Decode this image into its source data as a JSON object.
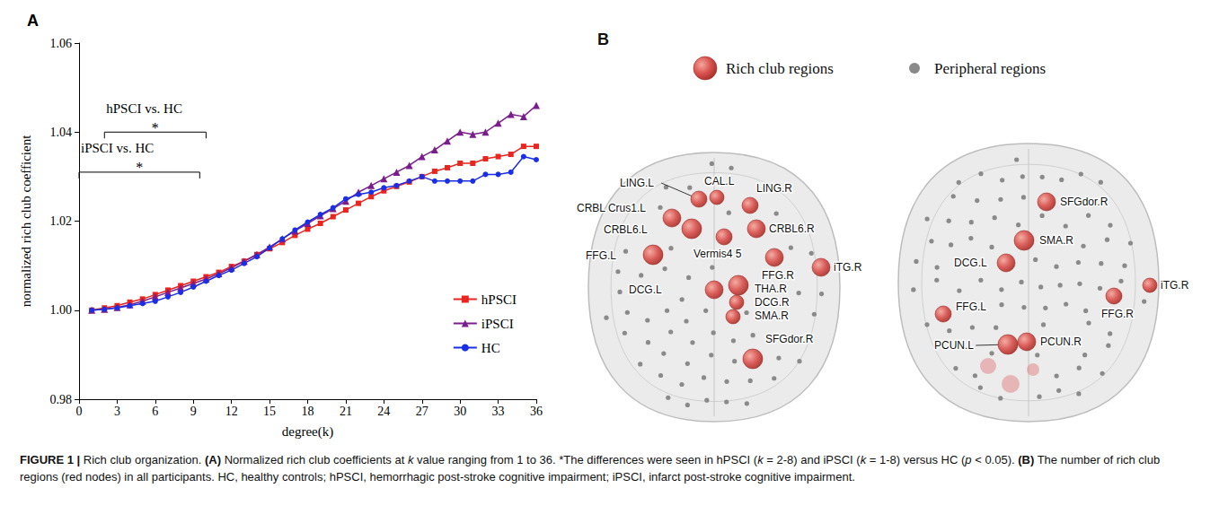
{
  "chart_data": {
    "type": "line",
    "panel_label": "A",
    "x_label": "degree(k)",
    "y_label": "normalized rich club coefficient",
    "x": [
      1,
      2,
      3,
      4,
      5,
      6,
      7,
      8,
      9,
      10,
      11,
      12,
      13,
      14,
      15,
      16,
      17,
      18,
      19,
      20,
      21,
      22,
      23,
      24,
      25,
      26,
      27,
      28,
      29,
      30,
      31,
      32,
      33,
      34,
      35,
      36
    ],
    "series": [
      {
        "name": "hPSCI",
        "color": "#e8251f",
        "marker": "square",
        "line_style": "solid",
        "values": [
          1.0,
          1.0005,
          1.001,
          1.0018,
          1.0025,
          1.0035,
          1.0045,
          1.0055,
          1.0065,
          1.0075,
          1.0085,
          1.0098,
          1.011,
          1.0125,
          1.0138,
          1.0152,
          1.0168,
          1.0182,
          1.0195,
          1.021,
          1.0225,
          1.024,
          1.0255,
          1.0268,
          1.0278,
          1.0288,
          1.03,
          1.0312,
          1.032,
          1.033,
          1.033,
          1.034,
          1.0345,
          1.035,
          1.0368,
          1.0368
        ]
      },
      {
        "name": "iPSCI",
        "color": "#7a1e8c",
        "marker": "triangle",
        "line_style": "solid",
        "values": [
          1.0,
          1.0002,
          1.0006,
          1.0012,
          1.002,
          1.003,
          1.004,
          1.005,
          1.006,
          1.007,
          1.0082,
          1.0095,
          1.011,
          1.0125,
          1.0142,
          1.016,
          1.0178,
          1.0195,
          1.0212,
          1.0228,
          1.0245,
          1.0265,
          1.028,
          1.0295,
          1.031,
          1.0325,
          1.0345,
          1.036,
          1.038,
          1.04,
          1.0395,
          1.04,
          1.042,
          1.044,
          1.0435,
          1.046
        ]
      },
      {
        "name": "HC",
        "color": "#1a2ee6",
        "marker": "circle",
        "line_style": "solid",
        "values": [
          1.0,
          1.0002,
          1.0005,
          1.001,
          1.0015,
          1.002,
          1.003,
          1.004,
          1.0052,
          1.0065,
          1.0078,
          1.009,
          1.0105,
          1.012,
          1.014,
          1.016,
          1.018,
          1.0198,
          1.0215,
          1.023,
          1.025,
          1.026,
          1.0265,
          1.0275,
          1.028,
          1.029,
          1.03,
          1.029,
          1.029,
          1.029,
          1.029,
          1.0305,
          1.0305,
          1.031,
          1.0345,
          1.0338
        ]
      }
    ],
    "xlim": [
      0,
      36
    ],
    "xticks": [
      0,
      3,
      6,
      9,
      12,
      15,
      18,
      21,
      24,
      27,
      30,
      33,
      36
    ],
    "ylim": [
      0.98,
      1.06
    ],
    "yticks": [
      0.98,
      {
        "value": 1,
        "label": "1.00"
      },
      1.02,
      1.04,
      1.06
    ],
    "grid": false,
    "legend": "lower right",
    "data_labels": false,
    "annotations": [
      {
        "text": "hPSCI vs. HC",
        "mark": "*",
        "x": [
          2,
          10
        ],
        "y": 1.04
      },
      {
        "text": "iPSCI vs. HC",
        "mark": "*",
        "x": [
          0,
          9.5
        ],
        "y": 1.031
      }
    ]
  },
  "panel_b": {
    "label": "B",
    "legend": [
      {
        "text": "Rich club regions",
        "color": "#d9534f"
      },
      {
        "text": "Peripheral regions",
        "color": "#8a8a8a"
      }
    ],
    "views": [
      {
        "nodes": [
          "LING.L",
          "CAL.L",
          "CRBL Crus1.L",
          "LING.R",
          "CRBL6.L",
          "CRBL6.R",
          "Vermis4 5",
          "FFG.L",
          "FFG.R",
          "iTG.R",
          "DCG.L",
          "THA.R",
          "DCG.R",
          "SMA.R",
          "SFGdor.R"
        ]
      },
      {
        "nodes": [
          "SFGdor.R",
          "SMA.R",
          "DCG.L",
          "iTG.R",
          "FFG.L",
          "FFG.R",
          "PCUN.L",
          "PCUN.R"
        ]
      }
    ]
  },
  "caption": [
    {
      "text": "FIGURE 1 | ",
      "bold": true
    },
    {
      "text": "Rich club organization. "
    },
    {
      "text": "(A)",
      "bold": true
    },
    {
      "text": " Normalized rich club coefficients at "
    },
    {
      "text": "k",
      "italic": true
    },
    {
      "text": " value ranging from 1 to 36. *The differences were seen in hPSCI ("
    },
    {
      "text": "k",
      "italic": true
    },
    {
      "text": " = 2-8) and iPSCI ("
    },
    {
      "text": "k",
      "italic": true
    },
    {
      "text": " = 1-8) versus HC ("
    },
    {
      "text": "p",
      "italic": true
    },
    {
      "text": " < 0.05). "
    },
    {
      "text": "(B)",
      "bold": true
    },
    {
      "text": " The number of rich club regions (red nodes) in all participants. HC, healthy controls; hPSCI, hemorrhagic post-stroke cognitive impairment; iPSCI, infarct post-stroke cognitive impairment."
    }
  ]
}
